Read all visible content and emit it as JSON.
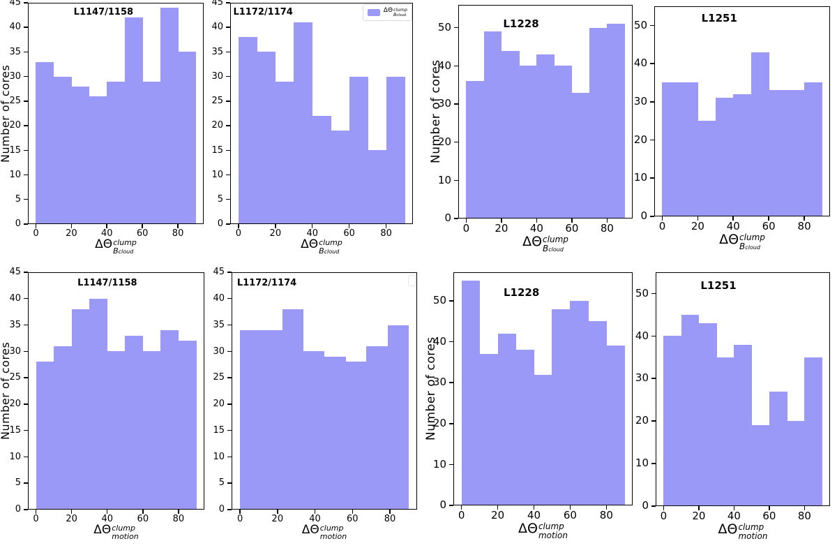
{
  "figure": {
    "background": "#ffffff",
    "bar_color": "#9a99f7",
    "legend_border_color": "#d8d8d8"
  },
  "chart_data": [
    {
      "type": "bar",
      "panel": "top-row-col1",
      "title": "L1147/1158",
      "ylabel": "Number of cores",
      "xlabel": {
        "base": "ΔΘ",
        "sup": "clump",
        "sub": "B",
        "subsub": "cloud"
      },
      "bin_edges": [
        0,
        10,
        20,
        30,
        40,
        50,
        60,
        70,
        80,
        90
      ],
      "values": [
        33,
        30,
        28,
        26,
        29,
        42,
        29,
        44,
        35
      ],
      "xlim": [
        0,
        90
      ],
      "ylim": [
        0,
        45
      ],
      "xticks": [
        0,
        20,
        40,
        60,
        80
      ],
      "yticks": [
        0,
        5,
        10,
        15,
        20,
        25,
        30,
        35,
        40,
        45
      ],
      "legend": null,
      "layout": {
        "title_x_pct": 43,
        "title_top": 6,
        "legend_position": "none",
        "grid": false
      }
    },
    {
      "type": "bar",
      "panel": "top-row-col2",
      "title": "L1172/1174",
      "ylabel": "",
      "xlabel": {
        "base": "ΔΘ",
        "sup": "clump",
        "sub": "B",
        "subsub": "cloud"
      },
      "bin_edges": [
        0,
        10,
        20,
        30,
        40,
        50,
        60,
        70,
        80,
        90
      ],
      "values": [
        38,
        35,
        29,
        41,
        22,
        19,
        30,
        15,
        30
      ],
      "xlim": [
        0,
        90
      ],
      "ylim": [
        0,
        45
      ],
      "xticks": [
        0,
        20,
        40,
        60,
        80
      ],
      "yticks": [
        0,
        5,
        10,
        15,
        20,
        25,
        30,
        35,
        40,
        45
      ],
      "legend": {
        "swatch_color": "#9a99f7",
        "label": {
          "base": "ΔΘ",
          "sup": "clump",
          "sub": "B",
          "subsub": "cloud"
        }
      },
      "layout": {
        "title_x_pct": 18,
        "title_top": 6,
        "legend_position": "upper right",
        "grid": false
      }
    },
    {
      "type": "bar",
      "panel": "top-row-col3",
      "title": "L1228",
      "ylabel": "Number of cores",
      "xlabel": {
        "base": "ΔΘ",
        "sup": "clump",
        "sub": "B",
        "subsub": "cloud"
      },
      "bin_edges": [
        0,
        10,
        20,
        30,
        40,
        50,
        60,
        70,
        80,
        90
      ],
      "values": [
        36,
        49,
        44,
        40,
        43,
        40,
        33,
        50,
        51
      ],
      "xlim": [
        0,
        90
      ],
      "ylim": [
        0,
        56
      ],
      "xticks": [
        0,
        20,
        40,
        60,
        80
      ],
      "yticks": [
        0,
        10,
        20,
        30,
        40,
        50
      ],
      "legend": null,
      "layout": {
        "title_x_pct": 36,
        "title_top": 18,
        "legend_position": "none",
        "grid": false
      }
    },
    {
      "type": "bar",
      "panel": "top-row-col4",
      "title": "L1251",
      "ylabel": "",
      "xlabel": {
        "base": "ΔΘ",
        "sup": "clump",
        "sub": "B",
        "subsub": "cloud"
      },
      "bin_edges": [
        0,
        10,
        20,
        30,
        40,
        50,
        60,
        70,
        80,
        90
      ],
      "values": [
        35,
        35,
        25,
        31,
        32,
        43,
        33,
        33,
        35
      ],
      "xlim": [
        0,
        90
      ],
      "ylim": [
        0,
        55
      ],
      "xticks": [
        0,
        20,
        40,
        60,
        80
      ],
      "yticks": [
        0,
        10,
        20,
        30,
        40,
        50
      ],
      "legend": null,
      "layout": {
        "title_x_pct": 37,
        "title_top": 8,
        "legend_position": "none",
        "grid": false
      }
    },
    {
      "type": "bar",
      "panel": "bottom-row-col1",
      "title": "L1147/1158",
      "ylabel": "Number of cores",
      "xlabel": {
        "base": "ΔΘ",
        "sup": "clump",
        "sub": "motion",
        "subsub": ""
      },
      "bin_edges": [
        0,
        10,
        20,
        30,
        40,
        50,
        60,
        70,
        80,
        90
      ],
      "values": [
        28,
        31,
        38,
        40,
        30,
        33,
        30,
        34,
        32
      ],
      "xlim": [
        0,
        90
      ],
      "ylim": [
        0,
        45
      ],
      "xticks": [
        0,
        20,
        40,
        60,
        80
      ],
      "yticks": [
        0,
        5,
        10,
        15,
        20,
        25,
        30,
        35,
        40,
        45
      ],
      "legend": null,
      "layout": {
        "title_x_pct": 45,
        "title_top": 8,
        "legend_position": "none",
        "grid": false
      }
    },
    {
      "type": "bar",
      "panel": "bottom-row-col2",
      "title": "L1172/1174",
      "ylabel": "",
      "xlabel": {
        "base": "ΔΘ",
        "sup": "clump",
        "sub": "motion",
        "subsub": ""
      },
      "bin_edges": [
        0,
        11.25,
        22.5,
        33.75,
        45,
        56.25,
        67.5,
        78.75,
        90
      ],
      "values": [
        34,
        34,
        38,
        30,
        29,
        28,
        31,
        35
      ],
      "xlim": [
        0,
        90
      ],
      "ylim": [
        0,
        45
      ],
      "xticks": [
        0,
        20,
        40,
        60,
        80
      ],
      "yticks": [
        0,
        5,
        10,
        15,
        20,
        25,
        30,
        35,
        40,
        45
      ],
      "legend": null,
      "legend_empty_box": true,
      "layout": {
        "title_x_pct": 19,
        "title_top": 8,
        "legend_position": "upper right empty",
        "grid": false
      }
    },
    {
      "type": "bar",
      "panel": "bottom-row-col3",
      "title": "L1228",
      "ylabel": "Number of cores",
      "xlabel": {
        "base": "ΔΘ",
        "sup": "clump",
        "sub": "motion",
        "subsub": ""
      },
      "bin_edges": [
        0,
        10,
        20,
        30,
        40,
        50,
        60,
        70,
        80,
        90
      ],
      "values": [
        55,
        37,
        42,
        38,
        32,
        48,
        50,
        45,
        39
      ],
      "xlim": [
        0,
        90
      ],
      "ylim": [
        0,
        57
      ],
      "xticks": [
        0,
        20,
        40,
        60,
        80
      ],
      "yticks": [
        0,
        10,
        20,
        30,
        40,
        50
      ],
      "legend": null,
      "layout": {
        "title_x_pct": 38,
        "title_top": 20,
        "legend_position": "none",
        "grid": false
      }
    },
    {
      "type": "bar",
      "panel": "bottom-row-col4",
      "title": "L1251",
      "ylabel": "",
      "xlabel": {
        "base": "ΔΘ",
        "sup": "clump",
        "sub": "motion",
        "subsub": ""
      },
      "bin_edges": [
        0,
        10,
        20,
        30,
        40,
        50,
        60,
        70,
        80,
        90
      ],
      "values": [
        40,
        45,
        43,
        35,
        38,
        19,
        27,
        20,
        35
      ],
      "xlim": [
        0,
        90
      ],
      "ylim": [
        0,
        55
      ],
      "xticks": [
        0,
        20,
        40,
        60,
        80
      ],
      "yticks": [
        0,
        10,
        20,
        30,
        40,
        50
      ],
      "legend": null,
      "layout": {
        "title_x_pct": 36,
        "title_top": 10,
        "legend_position": "none",
        "grid": false
      }
    }
  ]
}
